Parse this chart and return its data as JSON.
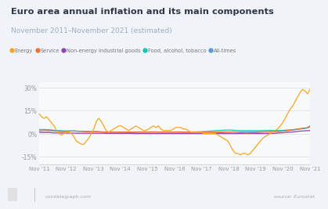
{
  "title": "Euro area annual inflation and its main components",
  "subtitle": "November 2011–November 2021 (estimated)",
  "background_color": "#f0f3f7",
  "plot_bg_color": "#f8f9fb",
  "title_color": "#2d3748",
  "subtitle_color": "#a0aec0",
  "yticks": [
    -15,
    0,
    15,
    30
  ],
  "ytick_labels": [
    "-15%",
    "0%",
    "15%",
    "30%"
  ],
  "xtick_labels": [
    "Nov '11",
    "Nov '12",
    "Nov '13",
    "Nov '14",
    "Nov '15",
    "Nov '16",
    "Nov '17",
    "Nov '18",
    "Nov '19",
    "Nov '20",
    "Nov '21"
  ],
  "legend_labels": [
    "Energy",
    "Service",
    "Non-energy industrial goods",
    "Food, alcohol, tobacco",
    "All-times"
  ],
  "legend_colors": [
    "#f5a623",
    "#e8743b",
    "#8e44ad",
    "#17c3b2",
    "#5b9bd5"
  ],
  "source_text": "source: Eurostat",
  "footer_text": "cointelegraph.com",
  "energy": [
    13,
    11,
    10,
    11,
    9,
    7,
    5,
    2,
    0,
    -1,
    0,
    1,
    1,
    0,
    -2,
    -5,
    -6,
    -7,
    -7,
    -5,
    -3,
    0,
    3,
    8,
    10,
    8,
    5,
    2,
    1,
    2,
    3,
    4,
    5,
    5,
    4,
    3,
    2,
    3,
    4,
    5,
    4,
    3,
    2,
    2,
    3,
    4,
    5,
    4,
    5,
    3,
    2,
    2,
    2,
    2,
    3,
    4,
    4,
    4,
    3,
    3,
    2,
    1,
    1,
    1,
    1,
    1,
    0,
    0,
    0,
    0,
    0,
    0,
    -1,
    -2,
    -3,
    -4,
    -5,
    -8,
    -11,
    -13,
    -13,
    -14,
    -13,
    -13,
    -14,
    -13,
    -11,
    -9,
    -7,
    -5,
    -3,
    -2,
    -1,
    0,
    1,
    2,
    3,
    5,
    7,
    10,
    13,
    16,
    18,
    21,
    24,
    27,
    29,
    28,
    26,
    29
  ],
  "service": [
    1.8,
    1.7,
    1.9,
    1.8,
    1.8,
    1.7,
    1.6,
    1.5,
    1.4,
    1.3,
    1.2,
    1.3,
    1.5,
    1.6,
    1.7,
    1.6,
    1.5,
    1.5,
    1.3,
    1.2,
    1.1,
    1.0,
    1.1,
    1.2,
    1.1,
    1.1,
    1.0,
    1.0,
    1.0,
    1.0,
    1.0,
    1.0,
    1.0,
    1.0,
    1.0,
    1.1,
    1.0,
    1.0,
    1.0,
    1.0,
    1.1,
    1.1,
    1.0,
    1.0,
    1.0,
    1.1,
    1.1,
    1.1,
    1.0,
    1.0,
    1.0,
    1.0,
    1.0,
    1.0,
    1.0,
    1.1,
    1.1,
    1.1,
    1.0,
    1.0,
    1.0,
    1.0,
    1.0,
    1.0,
    1.0,
    1.0,
    1.0,
    0.9,
    0.9,
    0.9,
    0.9,
    1.0,
    1.0,
    1.0,
    1.0,
    1.0,
    1.0,
    1.0,
    1.0,
    0.9,
    0.8,
    0.6,
    0.5,
    0.4,
    0.4,
    0.5,
    0.5,
    0.6,
    0.7,
    0.8,
    0.9,
    1.0,
    1.0,
    1.1,
    1.2,
    1.3,
    1.3,
    1.4,
    1.6,
    1.8,
    2.0,
    2.2,
    2.4,
    2.7,
    3.0,
    3.2,
    3.5,
    3.7,
    3.8,
    4.2
  ],
  "nonenergy": [
    0.8,
    0.7,
    0.7,
    0.7,
    0.7,
    0.5,
    0.4,
    0.4,
    0.4,
    0.3,
    0.3,
    0.3,
    0.3,
    0.3,
    0.3,
    0.2,
    0.2,
    0.2,
    0.2,
    0.2,
    0.2,
    0.2,
    0.2,
    0.2,
    0.2,
    0.2,
    0.2,
    0.1,
    0.1,
    0.1,
    0.1,
    0.1,
    0.1,
    0.1,
    0.1,
    0.1,
    0.1,
    0.1,
    0.0,
    0.0,
    0.0,
    0.0,
    0.0,
    0.0,
    0.0,
    0.0,
    0.0,
    0.0,
    0.0,
    0.0,
    0.0,
    0.0,
    0.0,
    0.0,
    0.0,
    0.0,
    0.0,
    0.0,
    0.0,
    0.0,
    0.0,
    0.0,
    0.0,
    0.0,
    0.0,
    0.0,
    0.0,
    0.0,
    0.0,
    0.0,
    0.0,
    0.0,
    0.0,
    0.0,
    0.0,
    0.0,
    0.0,
    0.0,
    0.0,
    0.0,
    0.0,
    0.0,
    0.0,
    0.0,
    0.0,
    0.0,
    0.0,
    0.0,
    0.0,
    0.0,
    0.0,
    0.0,
    0.0,
    0.1,
    0.1,
    0.2,
    0.3,
    0.4,
    0.5,
    0.7,
    0.8,
    0.9,
    1.0,
    1.2,
    1.4,
    1.6,
    1.7,
    1.8,
    1.9,
    2.0
  ],
  "food": [
    2.5,
    2.6,
    2.7,
    2.6,
    2.5,
    2.3,
    2.1,
    2.0,
    1.9,
    1.8,
    1.7,
    1.7,
    1.7,
    1.7,
    1.7,
    1.6,
    1.6,
    1.5,
    1.5,
    1.4,
    1.4,
    1.3,
    1.3,
    1.3,
    1.2,
    1.1,
    1.0,
    1.0,
    1.0,
    1.0,
    1.0,
    1.0,
    1.0,
    1.0,
    1.0,
    1.0,
    1.0,
    1.0,
    1.0,
    1.0,
    1.0,
    1.0,
    1.0,
    1.0,
    1.0,
    1.0,
    1.0,
    1.0,
    1.0,
    1.0,
    1.0,
    1.0,
    1.0,
    1.0,
    1.0,
    1.0,
    1.0,
    1.0,
    1.0,
    1.0,
    1.0,
    1.0,
    1.1,
    1.1,
    1.2,
    1.2,
    1.3,
    1.4,
    1.5,
    1.6,
    1.8,
    1.9,
    2.0,
    2.1,
    2.2,
    2.3,
    2.3,
    2.3,
    2.2,
    2.1,
    2.0,
    2.0,
    1.9,
    1.9,
    1.9,
    1.9,
    1.9,
    1.9,
    1.9,
    1.9,
    2.0,
    2.0,
    2.1,
    2.1,
    2.1,
    2.0,
    2.0,
    2.0,
    2.1,
    2.2,
    2.3,
    2.4,
    2.5,
    2.7,
    2.9,
    3.1,
    3.2,
    3.3,
    3.8,
    5.0
  ],
  "alltimes": [
    2.7,
    2.6,
    2.5,
    2.5,
    2.4,
    2.2,
    2.1,
    2.0,
    1.8,
    1.7,
    1.6,
    1.6,
    1.7,
    1.7,
    1.7,
    1.6,
    1.5,
    1.5,
    1.4,
    1.3,
    1.2,
    1.2,
    1.2,
    1.2,
    1.1,
    1.0,
    1.0,
    0.9,
    0.9,
    0.9,
    0.9,
    0.9,
    0.9,
    0.8,
    0.8,
    0.8,
    0.5,
    0.5,
    0.4,
    0.4,
    0.3,
    0.3,
    0.2,
    0.2,
    0.2,
    0.2,
    0.2,
    0.2,
    0.2,
    0.2,
    0.2,
    0.2,
    0.2,
    0.2,
    0.2,
    0.2,
    0.3,
    0.3,
    0.3,
    0.3,
    0.3,
    0.3,
    0.3,
    0.3,
    0.3,
    0.3,
    0.3,
    0.3,
    0.3,
    0.3,
    0.4,
    0.4,
    0.5,
    0.6,
    0.7,
    0.8,
    0.9,
    0.9,
    1.0,
    1.0,
    1.0,
    1.0,
    1.0,
    1.0,
    1.0,
    1.0,
    1.0,
    1.0,
    1.1,
    1.1,
    1.1,
    1.2,
    1.2,
    1.3,
    1.3,
    1.3,
    1.4,
    1.5,
    1.6,
    1.7,
    1.9,
    2.1,
    2.2,
    2.5,
    2.8,
    3.0,
    3.3,
    3.5,
    3.8,
    4.9
  ]
}
